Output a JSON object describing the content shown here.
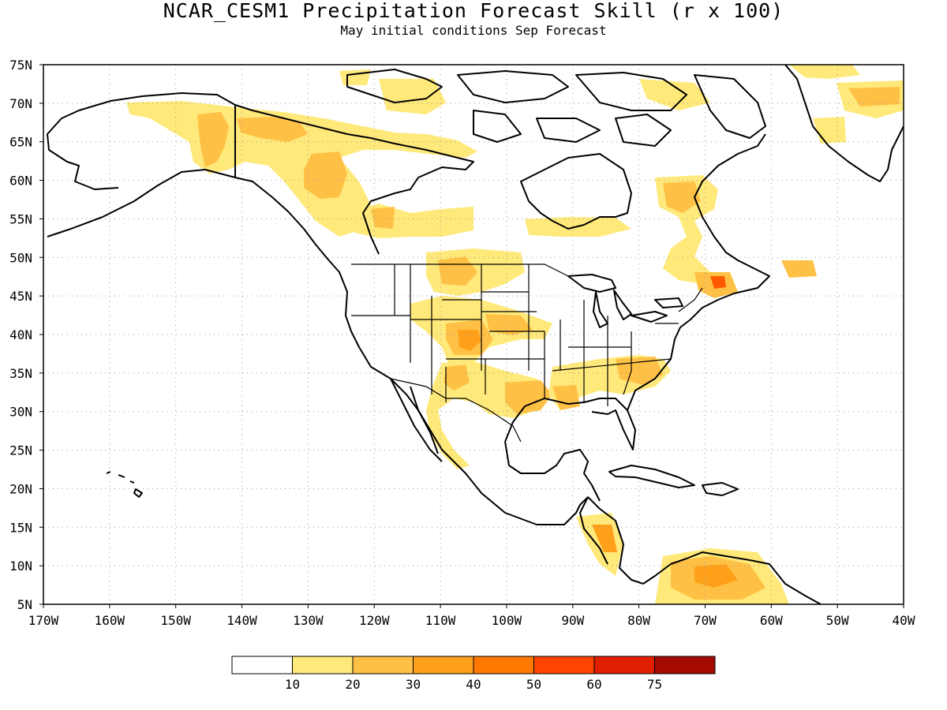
{
  "header": {
    "title": "NCAR_CESM1 Precipitation Forecast Skill (r x 100)",
    "subtitle": "May initial conditions  Sep Forecast"
  },
  "axes": {
    "lat_labels": [
      "75N",
      "70N",
      "65N",
      "60N",
      "55N",
      "50N",
      "45N",
      "40N",
      "35N",
      "30N",
      "25N",
      "20N",
      "15N",
      "10N",
      "5N"
    ],
    "lon_labels": [
      "170W",
      "160W",
      "150W",
      "140W",
      "130W",
      "120W",
      "110W",
      "100W",
      "90W",
      "80W",
      "70W",
      "60W",
      "50W",
      "40W"
    ]
  },
  "colorbar": {
    "labels": [
      "10",
      "20",
      "30",
      "40",
      "50",
      "60",
      "75"
    ],
    "colors": [
      "#ffffff",
      "#ffe97a",
      "#ffc145",
      "#ffa01a",
      "#ff7800",
      "#ff4500",
      "#e01e00",
      "#a50a00"
    ]
  },
  "map_features": {
    "shading_colors": {
      "c1": "#ffe97a",
      "c2": "#ffc145",
      "c3": "#ffa01a",
      "c4": "#ff5a00"
    },
    "grid": true
  }
}
